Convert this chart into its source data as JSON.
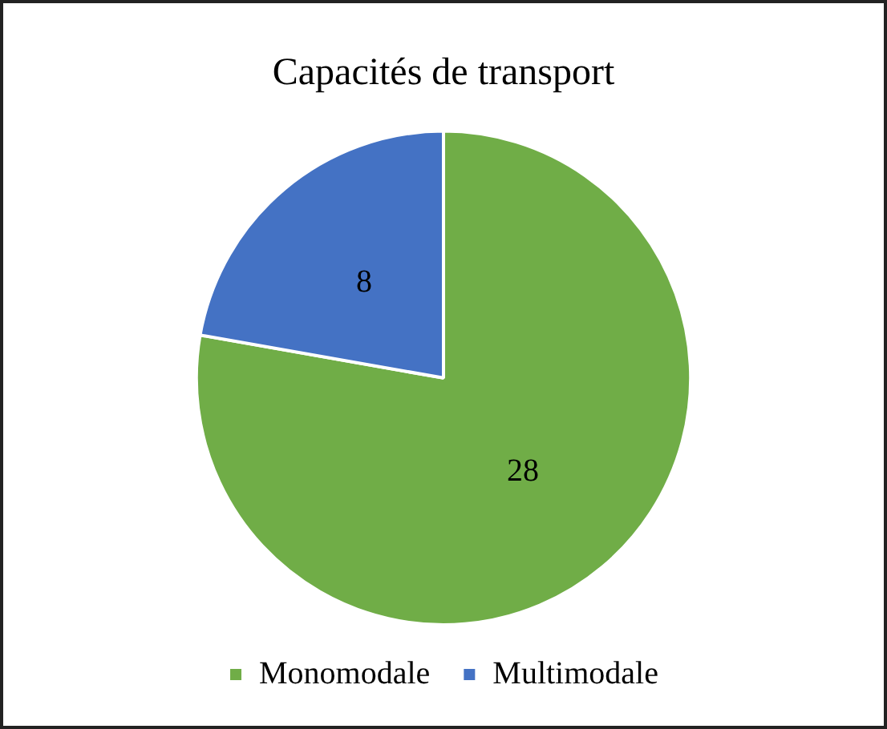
{
  "chart_data": {
    "type": "pie",
    "title": "Capacités de transport",
    "categories": [
      "Monomodale",
      "Multimodale"
    ],
    "values": [
      28,
      8
    ],
    "colors": [
      "#70ad47",
      "#4472c4"
    ],
    "data_labels": true,
    "legend": "bottom"
  }
}
